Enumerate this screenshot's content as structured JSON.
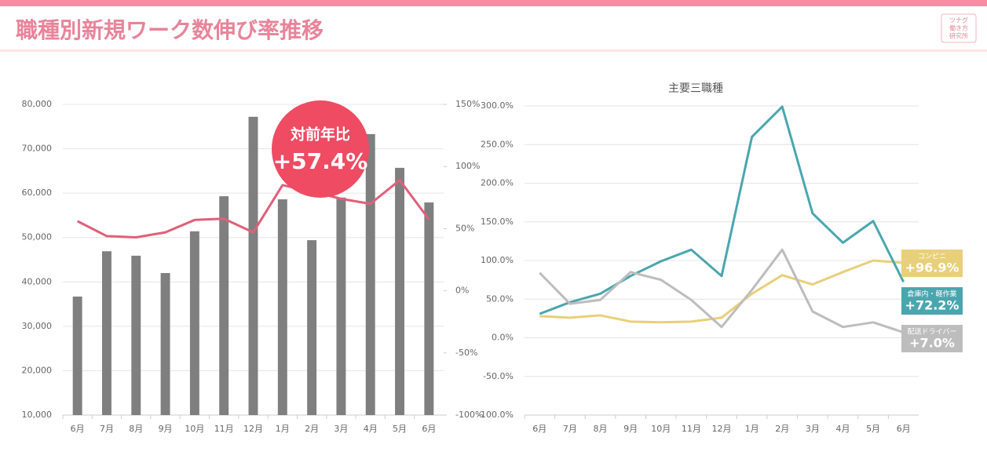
{
  "header": {
    "title": "職種別新規ワーク数伸び率推移",
    "logo": [
      "ツナグ",
      "働き方",
      "研究所"
    ]
  },
  "chart_data": [
    {
      "type": "bar_line",
      "categories": [
        "6月",
        "7月",
        "8月",
        "9月",
        "10月",
        "11月",
        "12月",
        "1月",
        "2月",
        "3月",
        "4月",
        "5月",
        "6月"
      ],
      "series": [
        {
          "type": "bar",
          "color": "#7f7f7f",
          "values": [
            36700,
            46900,
            45900,
            42000,
            51400,
            59300,
            77200,
            58600,
            49400,
            59000,
            73300,
            65700,
            57900
          ]
        },
        {
          "type": "line",
          "axis": "y2",
          "color": "#e0607a",
          "values": [
            56,
            44,
            43,
            47,
            57,
            58,
            47,
            85,
            80,
            74,
            70,
            89,
            57.4
          ]
        }
      ],
      "ylim": [
        10000,
        80000
      ],
      "yticks": [
        {
          "value": 10000,
          "label": "10,000"
        },
        {
          "value": 20000,
          "label": "20,000"
        },
        {
          "value": 30000,
          "label": "30,000"
        },
        {
          "value": 40000,
          "label": "40,000"
        },
        {
          "value": 50000,
          "label": "50,000"
        },
        {
          "value": 60000,
          "label": "60,000"
        },
        {
          "value": 70000,
          "label": "70,000"
        },
        {
          "value": 80000,
          "label": "80,000"
        }
      ],
      "y2lim": [
        -100,
        150
      ],
      "y2ticks": [
        {
          "value": -100,
          "label": "-100%"
        },
        {
          "value": -50,
          "label": "-50%"
        },
        {
          "value": 0,
          "label": "0%"
        },
        {
          "value": 50,
          "label": "50%"
        },
        {
          "value": 100,
          "label": "100%"
        },
        {
          "value": 150,
          "label": "150%"
        }
      ],
      "grid": true,
      "annotation": {
        "text": "対前年比",
        "value_label": "+57.4%",
        "color": "#ef4b63"
      }
    },
    {
      "type": "line",
      "title": "主要三職種",
      "categories": [
        "6月",
        "7月",
        "8月",
        "9月",
        "10月",
        "11月",
        "12月",
        "1月",
        "2月",
        "3月",
        "4月",
        "5月",
        "6月"
      ],
      "series": [
        {
          "name": "コンビニ",
          "color": "#e8cf7a",
          "values": [
            28,
            26,
            29,
            21,
            20,
            21,
            26,
            57,
            81,
            69,
            85,
            100,
            96.9
          ],
          "value_labels": [
            null,
            null,
            null,
            null,
            null,
            null,
            null,
            null,
            null,
            null,
            null,
            null,
            "+96.9%"
          ]
        },
        {
          "name": "倉庫内・軽作業",
          "color": "#4aa6ae",
          "values": [
            31,
            46,
            57,
            80,
            99,
            114,
            80,
            260,
            299,
            161,
            123,
            151,
            72.2
          ],
          "value_labels": [
            null,
            null,
            null,
            null,
            null,
            null,
            null,
            null,
            null,
            null,
            null,
            null,
            "+72.2%"
          ]
        },
        {
          "name": "配送ドライバー",
          "color": "#bdbdbd",
          "values": [
            84,
            44,
            49,
            85,
            75,
            49,
            14,
            62,
            114,
            34,
            14,
            20,
            7.0
          ],
          "value_labels": [
            null,
            null,
            null,
            null,
            null,
            null,
            null,
            null,
            null,
            null,
            null,
            null,
            "+7.0%"
          ]
        }
      ],
      "ylim": [
        -100,
        300
      ],
      "yticks": [
        {
          "value": -100,
          "label": "-100.0%"
        },
        {
          "value": -50,
          "label": "-50.0%"
        },
        {
          "value": 0,
          "label": "0.0%"
        },
        {
          "value": 50,
          "label": "50.0%"
        },
        {
          "value": 100,
          "label": "100.0%"
        },
        {
          "value": 150,
          "label": "150.0%"
        },
        {
          "value": 200,
          "label": "200.0%"
        },
        {
          "value": 250,
          "label": "250.0%"
        },
        {
          "value": 300,
          "label": "300.0%"
        }
      ],
      "grid": true
    }
  ]
}
